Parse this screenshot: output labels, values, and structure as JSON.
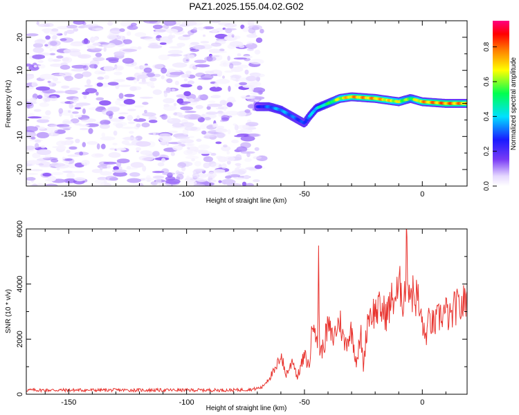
{
  "title": "PAZ1.2025.155.04.02.G02",
  "chart_data": [
    {
      "type": "heatmap",
      "xlabel": "Height of straight line (km)",
      "ylabel": "Frequency (Hz)",
      "xlim": [
        -168,
        19
      ],
      "ylim": [
        -25,
        25
      ],
      "xticks": [
        -150,
        -100,
        -50,
        0
      ],
      "yticks": [
        -20,
        -10,
        0,
        10,
        20
      ],
      "colorbar": {
        "label": "Normalized spectral amplitude",
        "range": [
          0,
          0.95
        ],
        "ticks": [
          0.0,
          0.2,
          0.4,
          0.6,
          0.8
        ],
        "colors": [
          "#ffffff",
          "#e6d9ff",
          "#7a3cf5",
          "#1a1aff",
          "#00e0ff",
          "#00ff50",
          "#ffff00",
          "#ff8000",
          "#ff0000",
          "#ff0080"
        ]
      },
      "noise_region": {
        "x": [
          -168,
          -68
        ],
        "amplitude": [
          0.02,
          0.15
        ]
      },
      "signal_ridge": {
        "x": [
          -70,
          -65,
          -60,
          -55,
          -50,
          -48,
          -45,
          -40,
          -35,
          -30,
          -20,
          -10,
          -5,
          0,
          10,
          19
        ],
        "frequency": [
          -1.0,
          -1.0,
          -2.0,
          -4.0,
          -6.0,
          -4.0,
          -1.5,
          0.0,
          1.5,
          2.0,
          1.5,
          0.5,
          1.5,
          0.5,
          0.0,
          0.0
        ],
        "amplitude": [
          0.25,
          0.35,
          0.4,
          0.35,
          0.3,
          0.4,
          0.45,
          0.55,
          0.7,
          0.8,
          0.8,
          0.7,
          0.6,
          0.8,
          0.85,
          0.8
        ]
      }
    },
    {
      "type": "line",
      "xlabel": "Height of straight line (km)",
      "ylabel": "SNR (10 * v/v)",
      "xlim": [
        -168,
        19
      ],
      "ylim": [
        0,
        6000
      ],
      "xticks": [
        -150,
        -100,
        -50,
        0
      ],
      "yticks": [
        0,
        2000,
        4000,
        6000
      ],
      "color": "#e8322d",
      "series": [
        {
          "x": [
            -168,
            -150,
            -120,
            -100,
            -80,
            -72,
            -68,
            -65,
            -62,
            -60,
            -58,
            -56,
            -55,
            -53,
            -52,
            -50,
            -48,
            -46,
            -44.5,
            -44,
            -43.5,
            -42,
            -40,
            -38,
            -35,
            -33,
            -30,
            -28,
            -26,
            -25,
            -23,
            -20,
            -18,
            -15,
            -13,
            -10,
            -9,
            -8,
            -7,
            -6.5,
            -6,
            -5,
            -3,
            -2,
            -1,
            0,
            1,
            2,
            3,
            5,
            8,
            10,
            12,
            14,
            16,
            19
          ],
          "y": [
            150,
            150,
            150,
            150,
            150,
            180,
            250,
            600,
            900,
            1500,
            700,
            1000,
            1300,
            600,
            900,
            1400,
            1000,
            3100,
            1500,
            5300,
            1500,
            1700,
            2500,
            2000,
            2700,
            1800,
            2300,
            1200,
            2100,
            1000,
            2900,
            3000,
            3100,
            2900,
            3400,
            3700,
            4000,
            3300,
            4200,
            6000,
            4000,
            3800,
            3500,
            3600,
            2800,
            2700,
            2000,
            2300,
            2700,
            2500,
            2900,
            3000,
            2700,
            3200,
            3100,
            3500
          ]
        }
      ]
    }
  ]
}
